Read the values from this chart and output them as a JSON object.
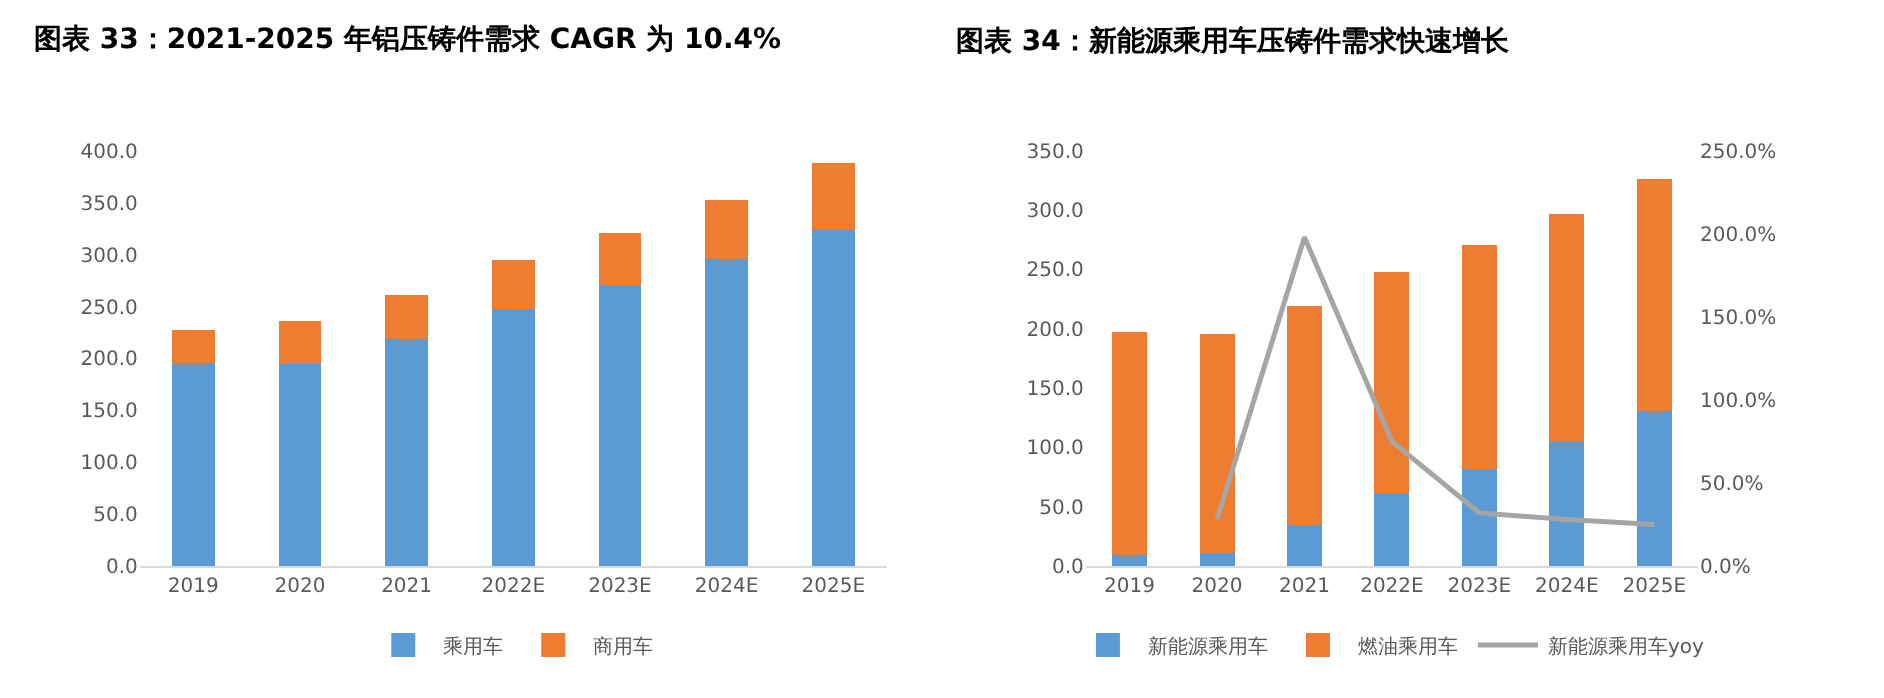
{
  "chart_data": [
    {
      "type": "bar",
      "title": "图表 33：2021-2025 年铝压铸件需求 CAGR 为 10.4%",
      "stacked": true,
      "categories": [
        "2019",
        "2020",
        "2021",
        "2022E",
        "2023E",
        "2024E",
        "2025E"
      ],
      "ylim": [
        0,
        400
      ],
      "yticks": [
        {
          "value": 0,
          "label": "0.0"
        },
        {
          "value": 50,
          "label": "50.0"
        },
        {
          "value": 100,
          "label": "100.0"
        },
        {
          "value": 150,
          "label": "150.0"
        },
        {
          "value": 200,
          "label": "200.0"
        },
        {
          "value": 250,
          "label": "250.0"
        },
        {
          "value": 300,
          "label": "300.0"
        },
        {
          "value": 350,
          "label": "350.0"
        },
        {
          "value": 400,
          "label": "400.0"
        }
      ],
      "grid": false,
      "legend": "bottom",
      "series": [
        {
          "name": "乘用车",
          "color": "#5b9bd5",
          "values": [
            196,
            195,
            219,
            248,
            271,
            296,
            324
          ]
        },
        {
          "name": "商用车",
          "color": "#ed7d31",
          "values": [
            31,
            41,
            42,
            47,
            50,
            57,
            64
          ]
        }
      ]
    },
    {
      "type": "bar",
      "title": "图表 34：新能源乘用车压铸件需求快速增长",
      "stacked": true,
      "categories": [
        "2019",
        "2020",
        "2021",
        "2022E",
        "2023E",
        "2024E",
        "2025E"
      ],
      "ylim": [
        0,
        350
      ],
      "yticks": [
        {
          "value": 0,
          "label": "0.0"
        },
        {
          "value": 50,
          "label": "50.0"
        },
        {
          "value": 100,
          "label": "100.0"
        },
        {
          "value": 150,
          "label": "150.0"
        },
        {
          "value": 200,
          "label": "200.0"
        },
        {
          "value": 250,
          "label": "250.0"
        },
        {
          "value": 300,
          "label": "300.0"
        },
        {
          "value": 350,
          "label": "350.0"
        }
      ],
      "y2lim": [
        0,
        250
      ],
      "y2ticks": [
        {
          "value": 0,
          "label": "0.0%"
        },
        {
          "value": 50,
          "label": "50.0%"
        },
        {
          "value": 100,
          "label": "100.0%"
        },
        {
          "value": 150,
          "label": "150.0%"
        },
        {
          "value": 200,
          "label": "200.0%"
        },
        {
          "value": 250,
          "label": "250.0%"
        }
      ],
      "grid": false,
      "legend": "bottom",
      "series": [
        {
          "name": "新能源乘用车",
          "color": "#5b9bd5",
          "values": [
            9,
            11,
            35,
            62,
            82,
            105,
            131
          ]
        },
        {
          "name": "燃油乘用车",
          "color": "#ed7d31",
          "values": [
            188,
            185,
            184,
            186,
            189,
            192,
            195
          ]
        },
        {
          "name": "新能源乘用车yoy",
          "color": "#a5a5a5",
          "type": "line",
          "axis": "y2",
          "marker": "none",
          "values": [
            null,
            28,
            198,
            75,
            32,
            28,
            25
          ]
        }
      ]
    }
  ]
}
